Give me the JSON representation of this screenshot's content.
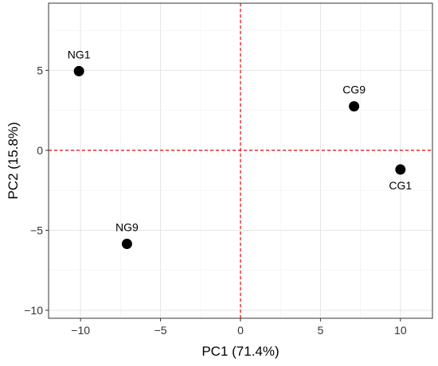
{
  "chart_data": {
    "type": "scatter",
    "title": "",
    "xlabel": "PC1 (71.4%)",
    "ylabel": "PC2 (15.8%)",
    "xlim": [
      -12,
      12
    ],
    "ylim": [
      -10.5,
      9.2
    ],
    "xticks": [
      -10,
      -5,
      0,
      5,
      10
    ],
    "yticks": [
      -10,
      -5,
      0,
      5
    ],
    "xtick_labels": [
      "−10",
      "−5",
      "0",
      "5",
      "10"
    ],
    "ytick_labels": [
      "−10",
      "−5",
      "0",
      "5"
    ],
    "grid": true,
    "reference_lines": {
      "x": 0,
      "y": 0,
      "color": "#e41a1c",
      "style": "dashed"
    },
    "points": [
      {
        "label": "NG1",
        "x": -10.1,
        "y": 4.95,
        "label_position": "above"
      },
      {
        "label": "CG9",
        "x": 7.1,
        "y": 2.75,
        "label_position": "above"
      },
      {
        "label": "CG1",
        "x": 10.0,
        "y": -1.2,
        "label_position": "below"
      },
      {
        "label": "NG9",
        "x": -7.1,
        "y": -5.85,
        "label_position": "above"
      }
    ]
  }
}
